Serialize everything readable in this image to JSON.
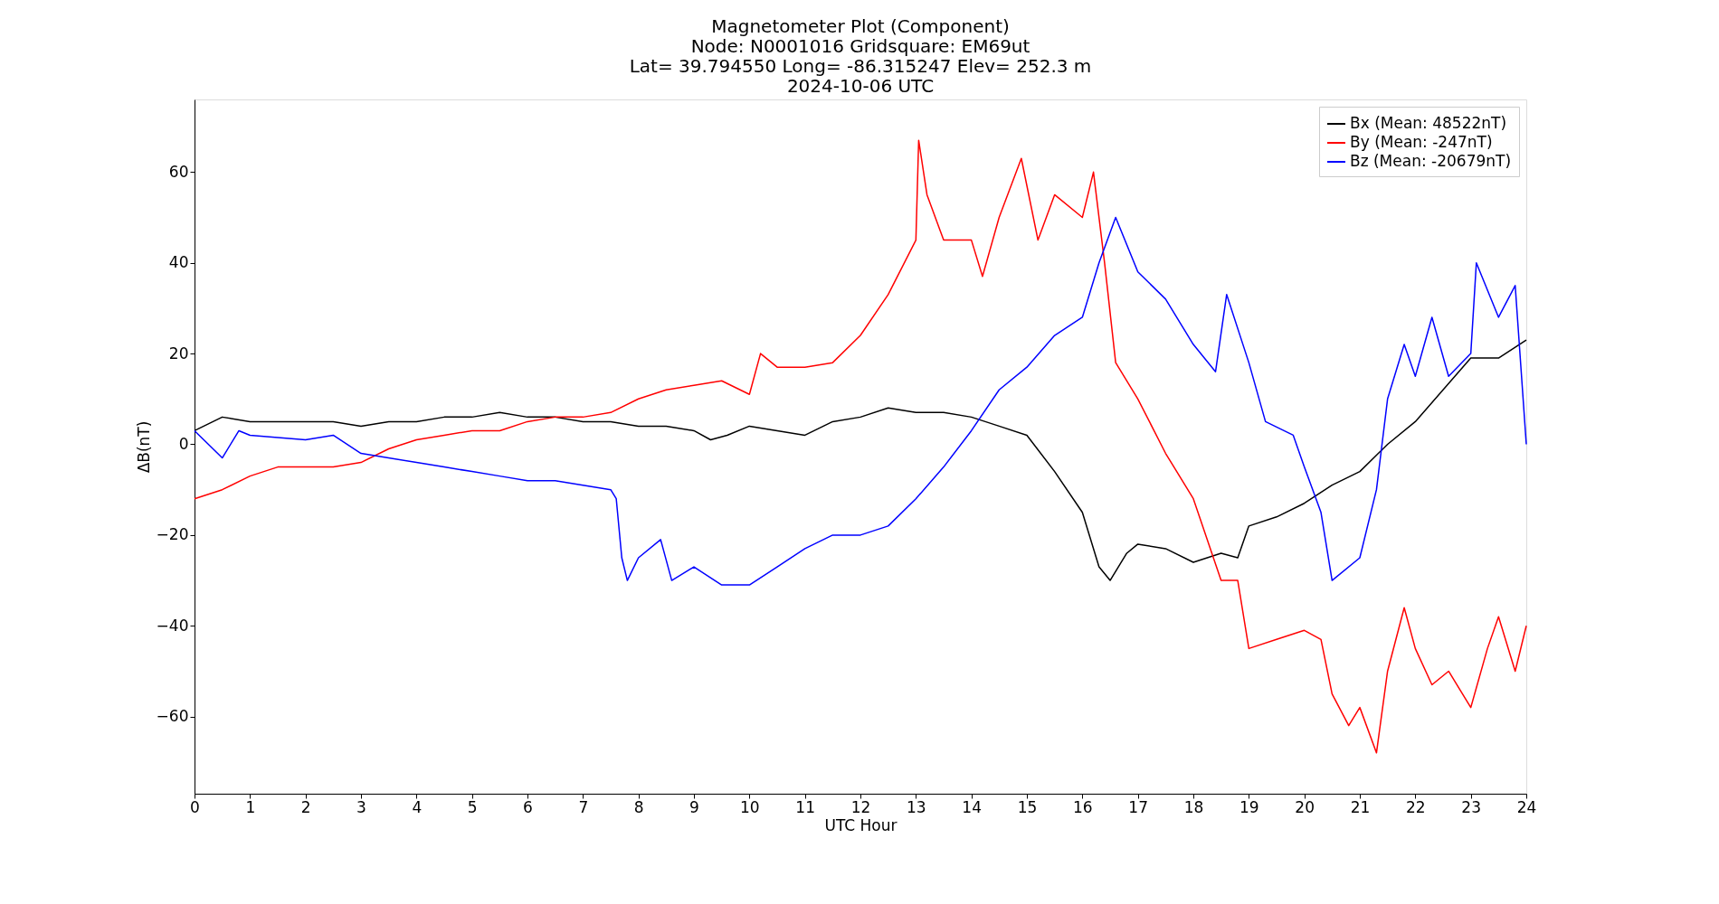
{
  "chart_data": {
    "type": "line",
    "title": "Magnetometer Plot (Component)\nNode:  N0001016     Gridsquare:  EM69ut\nLat= 39.794550    Long= -86.315247    Elev= 252.3 m\n2024-10-06  UTC",
    "xlabel": "UTC Hour",
    "ylabel": "ΔB(nT)",
    "xlim": [
      0,
      24
    ],
    "xticks": [
      0,
      1,
      2,
      3,
      4,
      5,
      6,
      7,
      8,
      9,
      10,
      11,
      12,
      13,
      14,
      15,
      16,
      17,
      18,
      19,
      20,
      21,
      22,
      23,
      24
    ],
    "ylim": [
      -77,
      76
    ],
    "yticks": [
      -60,
      -40,
      -20,
      0,
      20,
      40,
      60
    ],
    "grid": false,
    "legend": "top right",
    "series": [
      {
        "name": "Bx (Mean: 48522nT)",
        "color": "#000000",
        "x": [
          0,
          0.5,
          1,
          1.5,
          2,
          2.5,
          3,
          3.5,
          4,
          4.5,
          5,
          5.5,
          6,
          6.5,
          7,
          7.5,
          8,
          8.5,
          9,
          9.3,
          9.6,
          10,
          10.5,
          11,
          11.5,
          12,
          12.5,
          13,
          13.5,
          14,
          14.5,
          15,
          15.5,
          16,
          16.3,
          16.5,
          16.8,
          17,
          17.5,
          18,
          18.5,
          18.8,
          19,
          19.5,
          20,
          20.5,
          21,
          21.5,
          22,
          22.5,
          23,
          23.5,
          24
        ],
        "values": [
          3,
          6,
          5,
          5,
          5,
          5,
          4,
          5,
          5,
          6,
          6,
          7,
          6,
          6,
          5,
          5,
          4,
          4,
          3,
          1,
          2,
          4,
          3,
          2,
          5,
          6,
          8,
          7,
          7,
          6,
          4,
          2,
          -6,
          -15,
          -27,
          -30,
          -24,
          -22,
          -23,
          -26,
          -24,
          -25,
          -18,
          -16,
          -13,
          -9,
          -6,
          0,
          5,
          12,
          19,
          19,
          23
        ]
      },
      {
        "name": "By (Mean: -247nT)",
        "color": "#ff0000",
        "x": [
          0,
          0.5,
          1,
          1.5,
          2,
          2.5,
          3,
          3.5,
          4,
          4.5,
          5,
          5.5,
          6,
          6.5,
          7,
          7.5,
          8,
          8.5,
          9,
          9.5,
          10,
          10.2,
          10.5,
          11,
          11.5,
          12,
          12.5,
          13,
          13.05,
          13.2,
          13.5,
          14,
          14.2,
          14.5,
          14.9,
          15.2,
          15.5,
          16,
          16.2,
          16.4,
          16.6,
          17,
          17.5,
          18,
          18.5,
          18.8,
          19,
          19.5,
          20,
          20.3,
          20.5,
          20.8,
          21,
          21.3,
          21.5,
          21.8,
          22,
          22.3,
          22.6,
          23,
          23.3,
          23.5,
          23.8,
          24
        ],
        "values": [
          -12,
          -10,
          -7,
          -5,
          -5,
          -5,
          -4,
          -1,
          1,
          2,
          3,
          3,
          5,
          6,
          6,
          7,
          10,
          12,
          13,
          14,
          11,
          20,
          17,
          17,
          18,
          24,
          33,
          45,
          67,
          55,
          45,
          45,
          37,
          50,
          63,
          45,
          55,
          50,
          60,
          40,
          18,
          10,
          -2,
          -12,
          -30,
          -30,
          -45,
          -43,
          -41,
          -43,
          -55,
          -62,
          -58,
          -68,
          -50,
          -36,
          -45,
          -53,
          -50,
          -58,
          -45,
          -38,
          -50,
          -40
        ]
      },
      {
        "name": "Bz (Mean: -20679nT)",
        "color": "#0000ff",
        "x": [
          0,
          0.5,
          0.8,
          1,
          2,
          2.5,
          3,
          4,
          4.5,
          5,
          5.5,
          6,
          6.5,
          7,
          7.5,
          7.6,
          7.7,
          7.8,
          8,
          8.4,
          8.6,
          9,
          9.5,
          10,
          10.5,
          11,
          11.5,
          12,
          12.5,
          13,
          13.5,
          14,
          14.5,
          15,
          15.5,
          16,
          16.3,
          16.6,
          17,
          17.5,
          18,
          18.4,
          18.6,
          19,
          19.3,
          19.8,
          20,
          20.3,
          20.5,
          21,
          21.3,
          21.5,
          21.8,
          22,
          22.3,
          22.6,
          23,
          23.1,
          23.5,
          23.8,
          24
        ],
        "values": [
          3,
          -3,
          3,
          2,
          1,
          2,
          -2,
          -4,
          -5,
          -6,
          -7,
          -8,
          -8,
          -9,
          -10,
          -12,
          -25,
          -30,
          -25,
          -21,
          -30,
          -27,
          -31,
          -31,
          -27,
          -23,
          -20,
          -20,
          -18,
          -12,
          -5,
          3,
          12,
          17,
          24,
          28,
          40,
          50,
          38,
          32,
          22,
          16,
          33,
          18,
          5,
          2,
          -5,
          -15,
          -30,
          -25,
          -10,
          10,
          22,
          15,
          28,
          15,
          20,
          40,
          28,
          35,
          0
        ]
      }
    ]
  }
}
